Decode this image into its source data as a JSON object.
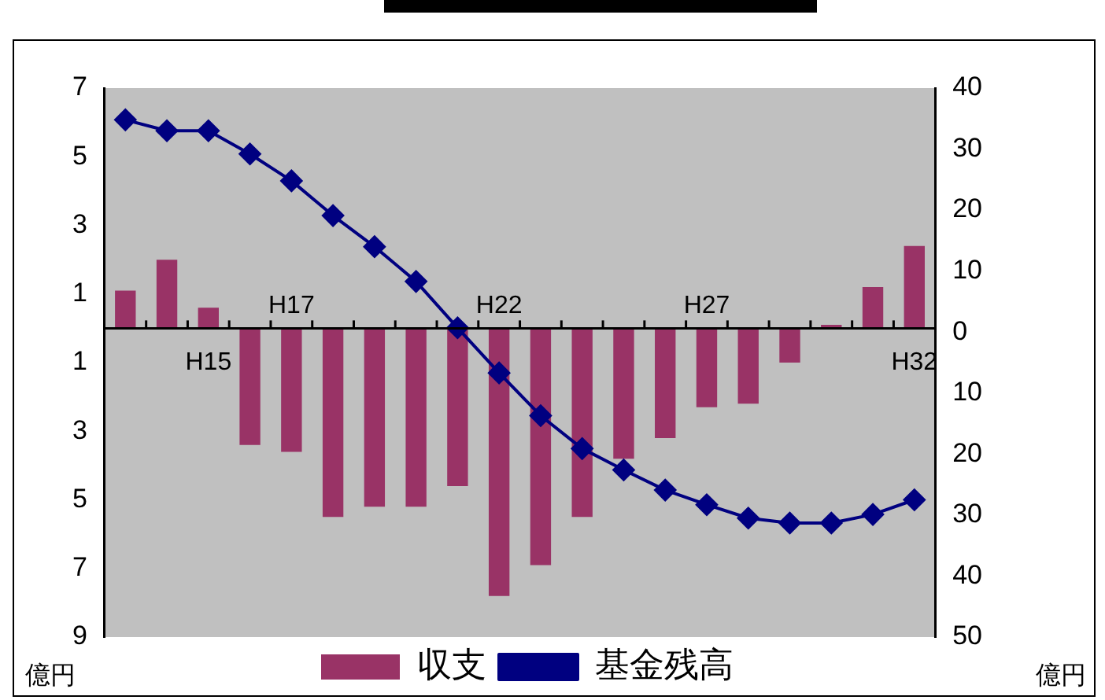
{
  "chart_data": {
    "type": "bar",
    "categories": [
      null,
      null,
      "H15",
      null,
      "H17",
      null,
      null,
      null,
      null,
      "H22",
      null,
      null,
      null,
      null,
      "H27",
      null,
      null,
      null,
      null,
      "H32"
    ],
    "series": [
      {
        "name": "収支",
        "color": "#993366",
        "values": [
          1.1,
          2.0,
          0.6,
          -3.4,
          -3.6,
          -5.5,
          -5.2,
          -5.2,
          -4.6,
          -7.8,
          -6.9,
          -5.5,
          -3.8,
          -3.2,
          -2.3,
          -2.2,
          -1.0,
          0.1,
          1.2,
          2.4
        ]
      },
      {
        "name": "基金残高",
        "type": "line",
        "axis": "y2",
        "color": "#000080",
        "marker": "diamond",
        "values": [
          34.8,
          33,
          33,
          29.2,
          24.8,
          19.1,
          14,
          8.3,
          0.7,
          -6.7,
          -13.7,
          -19.1,
          -22.6,
          -25.9,
          -28.3,
          -30.5,
          -31.3,
          -31.3,
          -29.9,
          -27.5
        ]
      }
    ],
    "ylim": [
      -9,
      7
    ],
    "yticks": [
      {
        "value": -9,
        "label": "9"
      },
      {
        "value": -7,
        "label": "7"
      },
      {
        "value": -5,
        "label": "5"
      },
      {
        "value": -3,
        "label": "3"
      },
      {
        "value": -1,
        "label": "1"
      },
      1,
      3,
      5,
      7
    ],
    "y2lim": [
      -50,
      40
    ],
    "y2ticks": [
      {
        "value": -50,
        "label": "50"
      },
      {
        "value": -40,
        "label": "40"
      },
      {
        "value": -30,
        "label": "30"
      },
      {
        "value": -20,
        "label": "20"
      },
      {
        "value": -10,
        "label": "10"
      },
      0,
      10,
      20,
      30,
      40
    ],
    "ylabel": "億円",
    "y2label": "億円",
    "grid": false,
    "legend": "bottom"
  }
}
